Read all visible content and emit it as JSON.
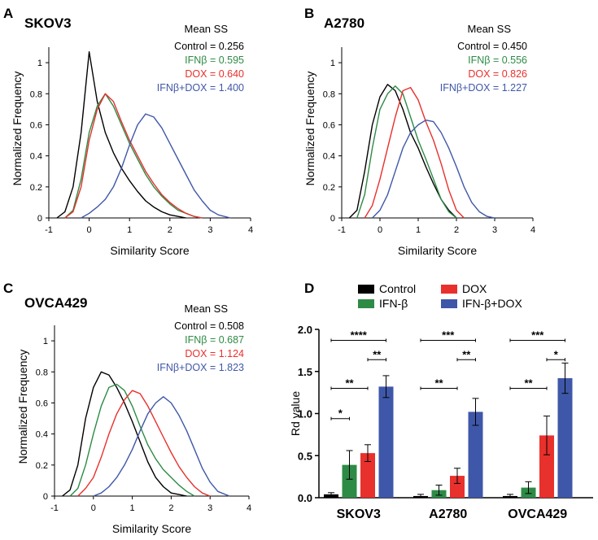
{
  "colors": {
    "control": "#000000",
    "ifnb": "#2e8b46",
    "dox": "#e8302c",
    "combo": "#3f57a8"
  },
  "panels": [
    {
      "letter": "A",
      "title": "SKOV3",
      "mean_header": "Mean SS",
      "means": [
        {
          "series": "control",
          "label": "Control = 0.256"
        },
        {
          "series": "ifnb",
          "label": "IFNβ = 0.595"
        },
        {
          "series": "dox",
          "label": "DOX = 0.640"
        },
        {
          "series": "combo",
          "label": "IFNβ+DOX = 1.400"
        }
      ]
    },
    {
      "letter": "B",
      "title": "A2780",
      "mean_header": "Mean SS",
      "means": [
        {
          "series": "control",
          "label": "Control = 0.450"
        },
        {
          "series": "ifnb",
          "label": "IFNβ = 0.556"
        },
        {
          "series": "dox",
          "label": "DOX = 0.826"
        },
        {
          "series": "combo",
          "label": "IFNβ+DOX = 1.227"
        }
      ]
    },
    {
      "letter": "C",
      "title": "OVCA429",
      "mean_header": "Mean SS",
      "means": [
        {
          "series": "control",
          "label": "Control = 0.508"
        },
        {
          "series": "ifnb",
          "label": "IFNβ = 0.687"
        },
        {
          "series": "dox",
          "label": "DOX = 1.124"
        },
        {
          "series": "combo",
          "label": "IFNβ+DOX = 1.823"
        }
      ]
    },
    {
      "letter": "D"
    }
  ],
  "chart_data": [
    {
      "type": "line",
      "panel": "A",
      "title": "SKOV3",
      "xlabel": "Similarity Score",
      "ylabel": "Normalized Frequency",
      "xlim": [
        -1,
        4
      ],
      "ylim": [
        0,
        1.1
      ],
      "xticks": [
        "-1",
        "0",
        "1",
        "2",
        "3",
        "4"
      ],
      "yticks": [
        "0",
        "0.2",
        "0.4",
        "0.6",
        "0.8",
        "1"
      ],
      "series": [
        {
          "name": "Control",
          "key": "control",
          "x": [
            -0.8,
            -0.6,
            -0.4,
            -0.2,
            0,
            0.2,
            0.4,
            0.6,
            0.8,
            1,
            1.2,
            1.4,
            1.6,
            1.8,
            2,
            2.2,
            2.4
          ],
          "y": [
            0,
            0.04,
            0.2,
            0.55,
            1.07,
            0.75,
            0.55,
            0.42,
            0.32,
            0.24,
            0.17,
            0.11,
            0.07,
            0.04,
            0.02,
            0.01,
            0
          ]
        },
        {
          "name": "IFNβ",
          "key": "ifnb",
          "x": [
            -0.6,
            -0.4,
            -0.2,
            0,
            0.2,
            0.4,
            0.6,
            0.8,
            1,
            1.2,
            1.4,
            1.6,
            1.8,
            2,
            2.2,
            2.4,
            2.6,
            2.8
          ],
          "y": [
            0,
            0.05,
            0.25,
            0.55,
            0.72,
            0.8,
            0.72,
            0.6,
            0.48,
            0.38,
            0.28,
            0.2,
            0.14,
            0.09,
            0.05,
            0.03,
            0.01,
            0
          ]
        },
        {
          "name": "DOX",
          "key": "dox",
          "x": [
            -0.6,
            -0.4,
            -0.2,
            0,
            0.2,
            0.4,
            0.6,
            0.8,
            1,
            1.2,
            1.4,
            1.6,
            1.8,
            2,
            2.2,
            2.4,
            2.6,
            2.8
          ],
          "y": [
            0,
            0.04,
            0.2,
            0.5,
            0.7,
            0.8,
            0.75,
            0.62,
            0.5,
            0.4,
            0.3,
            0.22,
            0.15,
            0.1,
            0.06,
            0.03,
            0.01,
            0
          ]
        },
        {
          "name": "IFNβ+DOX",
          "key": "combo",
          "x": [
            -0.2,
            0,
            0.2,
            0.4,
            0.6,
            0.8,
            1,
            1.2,
            1.4,
            1.6,
            1.8,
            2,
            2.2,
            2.4,
            2.6,
            2.8,
            3,
            3.2,
            3.5
          ],
          "y": [
            0,
            0.03,
            0.07,
            0.12,
            0.2,
            0.32,
            0.47,
            0.6,
            0.67,
            0.65,
            0.58,
            0.48,
            0.38,
            0.28,
            0.18,
            0.11,
            0.05,
            0.02,
            0
          ]
        }
      ]
    },
    {
      "type": "line",
      "panel": "B",
      "title": "A2780",
      "xlabel": "Similarity Score",
      "ylabel": "Normalized Frequency",
      "xlim": [
        -1,
        4
      ],
      "ylim": [
        0,
        1.1
      ],
      "xticks": [
        "-1",
        "0",
        "1",
        "2",
        "3",
        "4"
      ],
      "yticks": [
        "0",
        "0.2",
        "0.4",
        "0.6",
        "0.8",
        "1"
      ],
      "series": [
        {
          "name": "Control",
          "key": "control",
          "x": [
            -0.8,
            -0.6,
            -0.4,
            -0.2,
            0,
            0.2,
            0.4,
            0.6,
            0.8,
            1,
            1.2,
            1.4,
            1.6,
            1.8,
            2
          ],
          "y": [
            0,
            0.05,
            0.3,
            0.6,
            0.78,
            0.86,
            0.82,
            0.7,
            0.55,
            0.45,
            0.33,
            0.22,
            0.12,
            0.05,
            0
          ]
        },
        {
          "name": "IFNβ",
          "key": "ifnb",
          "x": [
            -0.6,
            -0.4,
            -0.2,
            0,
            0.2,
            0.4,
            0.6,
            0.8,
            1,
            1.2,
            1.4,
            1.6,
            1.8,
            2
          ],
          "y": [
            0,
            0.15,
            0.45,
            0.7,
            0.8,
            0.85,
            0.8,
            0.65,
            0.5,
            0.38,
            0.25,
            0.12,
            0.04,
            0
          ]
        },
        {
          "name": "DOX",
          "key": "dox",
          "x": [
            -0.4,
            -0.2,
            0,
            0.2,
            0.4,
            0.6,
            0.8,
            1,
            1.2,
            1.4,
            1.6,
            1.8,
            2,
            2.2
          ],
          "y": [
            0,
            0.08,
            0.25,
            0.45,
            0.65,
            0.82,
            0.84,
            0.76,
            0.62,
            0.5,
            0.35,
            0.18,
            0.05,
            0
          ]
        },
        {
          "name": "IFNβ+DOX",
          "key": "combo",
          "x": [
            -0.2,
            0,
            0.2,
            0.4,
            0.6,
            0.8,
            1,
            1.2,
            1.4,
            1.6,
            1.8,
            2,
            2.2,
            2.4,
            2.6,
            2.8,
            3
          ],
          "y": [
            0,
            0.05,
            0.15,
            0.3,
            0.45,
            0.55,
            0.6,
            0.63,
            0.62,
            0.55,
            0.45,
            0.33,
            0.2,
            0.1,
            0.04,
            0.01,
            0
          ]
        }
      ]
    },
    {
      "type": "line",
      "panel": "C",
      "title": "OVCA429",
      "xlabel": "Similarity Score",
      "ylabel": "Normalized Frequency",
      "xlim": [
        -1,
        4
      ],
      "ylim": [
        0,
        1.1
      ],
      "xticks": [
        "-1",
        "0",
        "1",
        "2",
        "3",
        "4"
      ],
      "yticks": [
        "0",
        "0.2",
        "0.4",
        "0.6",
        "0.8",
        "1"
      ],
      "series": [
        {
          "name": "Control",
          "key": "control",
          "x": [
            -0.8,
            -0.6,
            -0.4,
            -0.2,
            0,
            0.2,
            0.4,
            0.6,
            0.8,
            1,
            1.2,
            1.4,
            1.6,
            1.8,
            2,
            2.2,
            2.4
          ],
          "y": [
            0,
            0.04,
            0.2,
            0.5,
            0.7,
            0.8,
            0.78,
            0.7,
            0.6,
            0.48,
            0.35,
            0.22,
            0.12,
            0.06,
            0.02,
            0.01,
            0
          ]
        },
        {
          "name": "IFNβ",
          "key": "ifnb",
          "x": [
            -0.6,
            -0.4,
            -0.2,
            0,
            0.2,
            0.4,
            0.6,
            0.8,
            1,
            1.2,
            1.4,
            1.6,
            1.8,
            2,
            2.2,
            2.4,
            2.6
          ],
          "y": [
            0,
            0.05,
            0.2,
            0.4,
            0.58,
            0.7,
            0.72,
            0.68,
            0.58,
            0.45,
            0.33,
            0.24,
            0.17,
            0.12,
            0.07,
            0.03,
            0
          ]
        },
        {
          "name": "DOX",
          "key": "dox",
          "x": [
            -0.4,
            -0.2,
            0,
            0.2,
            0.4,
            0.6,
            0.8,
            1,
            1.2,
            1.4,
            1.6,
            1.8,
            2,
            2.2,
            2.4,
            2.6,
            2.8,
            3
          ],
          "y": [
            0,
            0.05,
            0.12,
            0.25,
            0.4,
            0.53,
            0.62,
            0.68,
            0.66,
            0.58,
            0.48,
            0.38,
            0.28,
            0.19,
            0.12,
            0.06,
            0.02,
            0
          ]
        },
        {
          "name": "IFNβ+DOX",
          "key": "combo",
          "x": [
            0,
            0.2,
            0.4,
            0.6,
            0.8,
            1,
            1.2,
            1.4,
            1.6,
            1.8,
            2,
            2.2,
            2.4,
            2.6,
            2.8,
            3,
            3.2,
            3.5
          ],
          "y": [
            0,
            0.02,
            0.06,
            0.12,
            0.2,
            0.3,
            0.42,
            0.53,
            0.6,
            0.64,
            0.6,
            0.52,
            0.42,
            0.3,
            0.18,
            0.09,
            0.03,
            0
          ]
        }
      ]
    },
    {
      "type": "bar",
      "panel": "D",
      "ylabel": "Rd value",
      "ylim": [
        0,
        2.0
      ],
      "yticks": [
        "0.0",
        "0.5",
        "1.0",
        "1.5",
        "2.0"
      ],
      "categories": [
        "SKOV3",
        "A2780",
        "OVCA429"
      ],
      "legend": [
        "Control",
        "IFN-β",
        "DOX",
        "IFN-β+DOX"
      ],
      "series": [
        {
          "name": "Control",
          "key": "control",
          "values": [
            0.04,
            0.02,
            0.02
          ],
          "errors": [
            0.02,
            0.02,
            0.02
          ]
        },
        {
          "name": "IFN-β",
          "key": "ifnb",
          "values": [
            0.39,
            0.09,
            0.12
          ],
          "errors": [
            0.17,
            0.06,
            0.07
          ]
        },
        {
          "name": "DOX",
          "key": "dox",
          "values": [
            0.53,
            0.26,
            0.74
          ],
          "errors": [
            0.1,
            0.09,
            0.23
          ]
        },
        {
          "name": "IFN-β+DOX",
          "key": "combo",
          "values": [
            1.32,
            1.02,
            1.42
          ],
          "errors": [
            0.13,
            0.16,
            0.18
          ]
        }
      ],
      "significance": [
        {
          "group": 0,
          "from": 0,
          "to": 3,
          "y": 1.87,
          "label": "****"
        },
        {
          "group": 0,
          "from": 2,
          "to": 3,
          "y": 1.64,
          "label": "**"
        },
        {
          "group": 0,
          "from": 0,
          "to": 2,
          "y": 1.3,
          "label": "**"
        },
        {
          "group": 0,
          "from": 0,
          "to": 1,
          "y": 0.94,
          "label": "*"
        },
        {
          "group": 1,
          "from": 0,
          "to": 3,
          "y": 1.87,
          "label": "***"
        },
        {
          "group": 1,
          "from": 2,
          "to": 3,
          "y": 1.64,
          "label": "**"
        },
        {
          "group": 1,
          "from": 0,
          "to": 2,
          "y": 1.3,
          "label": "**"
        },
        {
          "group": 2,
          "from": 0,
          "to": 3,
          "y": 1.87,
          "label": "***"
        },
        {
          "group": 2,
          "from": 2,
          "to": 3,
          "y": 1.64,
          "label": "*"
        },
        {
          "group": 2,
          "from": 0,
          "to": 2,
          "y": 1.3,
          "label": "**"
        }
      ]
    }
  ]
}
